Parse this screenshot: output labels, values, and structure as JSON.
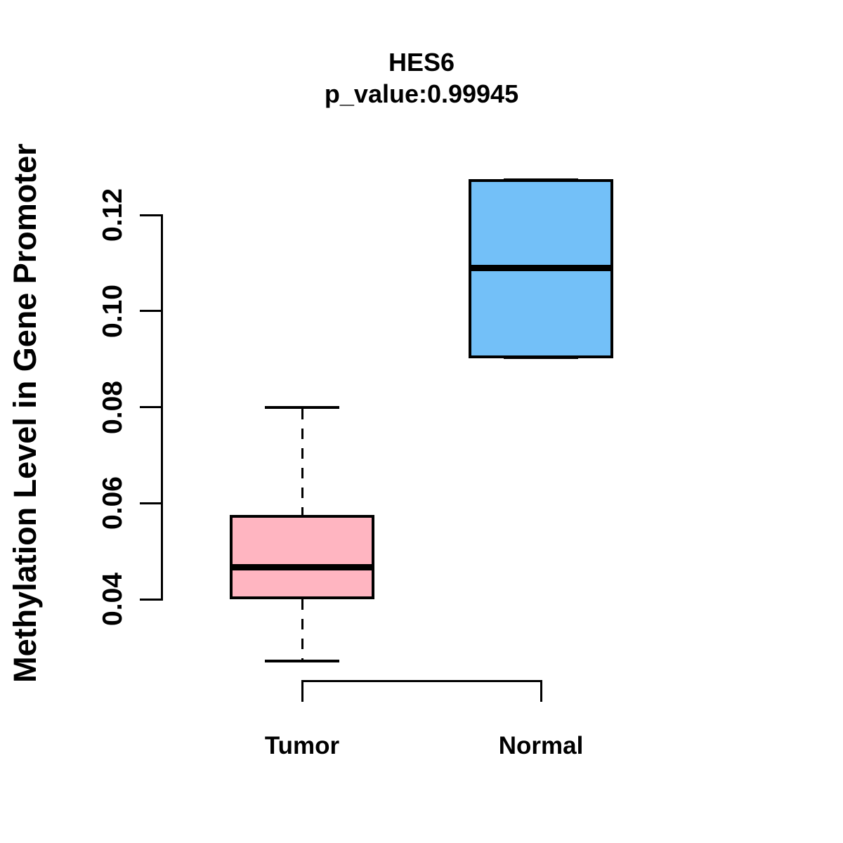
{
  "figure": {
    "title": "HES6",
    "subtitle": "p_value:0.99945",
    "gene": "HES6",
    "p_value": "0.99945"
  },
  "chart_data": {
    "type": "boxplot",
    "title": "HES6",
    "subtitle": "p_value:0.99945",
    "xlabel": "",
    "ylabel": "Methylation Level in Gene Promoter",
    "y_ticks": [
      0.04,
      0.06,
      0.08,
      0.1,
      0.12
    ],
    "y_tick_labels": [
      "0.04",
      "0.06",
      "0.08",
      "0.10",
      "0.12"
    ],
    "ylim": [
      0.025,
      0.128
    ],
    "grid": false,
    "legend": "none",
    "categories": [
      "Tumor",
      "Normal"
    ],
    "groups": [
      {
        "label": "Tumor",
        "fill_color": "#FFB5C1",
        "whisker_low": 0.0271,
        "q1": 0.0403,
        "median": 0.0466,
        "q3": 0.0573,
        "whisker_high": 0.0799
      },
      {
        "label": "Normal",
        "fill_color": "#73C0F8",
        "whisker_low": 0.0905,
        "q1": 0.0905,
        "median": 0.1089,
        "q3": 0.1272,
        "whisker_high": 0.1272
      }
    ],
    "colors": {
      "stroke": "#000000",
      "background": "#ffffff",
      "tumor_fill": "#FFB5C1",
      "normal_fill": "#73C0F8"
    }
  }
}
